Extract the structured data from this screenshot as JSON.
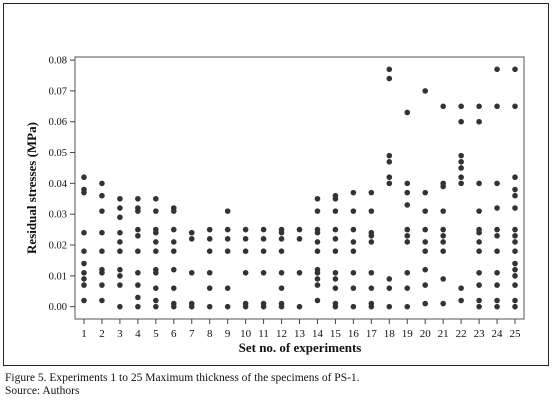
{
  "caption": "Figure 5. Experiments 1 to 25 Maximum thickness of the specimens of PS-1.",
  "source": "Source: Authors",
  "chart_data": {
    "type": "scatter",
    "xlabel": "Set no. of experiments",
    "ylabel": "Residual stresses (MPa)",
    "xlim": [
      0.5,
      25.5
    ],
    "ylim": [
      -0.004,
      0.081
    ],
    "x_ticks": [
      1,
      2,
      3,
      4,
      5,
      6,
      7,
      8,
      9,
      10,
      11,
      12,
      13,
      14,
      15,
      16,
      17,
      18,
      19,
      20,
      21,
      22,
      23,
      24,
      25
    ],
    "x_tick_labels": [
      "1",
      "2",
      "3",
      "4",
      "5",
      "6",
      "7",
      "8",
      "9",
      "10",
      "11",
      "12",
      "13",
      "14",
      "15",
      "16",
      "17",
      "18",
      "19",
      "20",
      "21",
      "22",
      "23",
      "24",
      "25"
    ],
    "y_ticks": [
      0,
      0.01,
      0.02,
      0.03,
      0.04,
      0.05,
      0.06,
      0.07,
      0.08
    ],
    "y_tick_labels": [
      "0.00",
      "0.01",
      "0.02",
      "0.03",
      "0.04",
      "0.05",
      "0.06",
      "0.07",
      "0.08"
    ],
    "grid": false,
    "marker_color": "#333333",
    "points": [
      [
        1,
        0.042
      ],
      [
        1,
        0.038
      ],
      [
        1,
        0.037
      ],
      [
        1,
        0.024
      ],
      [
        1,
        0.018
      ],
      [
        1,
        0.014
      ],
      [
        1,
        0.011
      ],
      [
        1,
        0.009
      ],
      [
        1,
        0.007
      ],
      [
        1,
        0.002
      ],
      [
        2,
        0.04
      ],
      [
        2,
        0.036
      ],
      [
        2,
        0.031
      ],
      [
        2,
        0.024
      ],
      [
        2,
        0.018
      ],
      [
        2,
        0.012
      ],
      [
        2,
        0.011
      ],
      [
        2,
        0.007
      ],
      [
        2,
        0.002
      ],
      [
        3,
        0.035
      ],
      [
        3,
        0.032
      ],
      [
        3,
        0.029
      ],
      [
        3,
        0.024
      ],
      [
        3,
        0.021
      ],
      [
        3,
        0.018
      ],
      [
        3,
        0.012
      ],
      [
        3,
        0.01
      ],
      [
        3,
        0.007
      ],
      [
        3,
        0.0
      ],
      [
        4,
        0.035
      ],
      [
        4,
        0.032
      ],
      [
        4,
        0.031
      ],
      [
        4,
        0.025
      ],
      [
        4,
        0.023
      ],
      [
        4,
        0.018
      ],
      [
        4,
        0.011
      ],
      [
        4,
        0.007
      ],
      [
        4,
        0.003
      ],
      [
        4,
        0.0
      ],
      [
        5,
        0.035
      ],
      [
        5,
        0.031
      ],
      [
        5,
        0.025
      ],
      [
        5,
        0.024
      ],
      [
        5,
        0.021
      ],
      [
        5,
        0.018
      ],
      [
        5,
        0.012
      ],
      [
        5,
        0.011
      ],
      [
        5,
        0.006
      ],
      [
        5,
        0.002
      ],
      [
        5,
        0.0
      ],
      [
        6,
        0.032
      ],
      [
        6,
        0.031
      ],
      [
        6,
        0.025
      ],
      [
        6,
        0.021
      ],
      [
        6,
        0.018
      ],
      [
        6,
        0.012
      ],
      [
        6,
        0.006
      ],
      [
        6,
        0.001
      ],
      [
        6,
        0.0
      ],
      [
        7,
        0.024
      ],
      [
        7,
        0.022
      ],
      [
        7,
        0.011
      ],
      [
        7,
        0.001
      ],
      [
        7,
        0.0
      ],
      [
        8,
        0.025
      ],
      [
        8,
        0.022
      ],
      [
        8,
        0.018
      ],
      [
        8,
        0.011
      ],
      [
        8,
        0.006
      ],
      [
        8,
        0.0
      ],
      [
        9,
        0.031
      ],
      [
        9,
        0.025
      ],
      [
        9,
        0.022
      ],
      [
        9,
        0.018
      ],
      [
        9,
        0.006
      ],
      [
        9,
        0.0
      ],
      [
        10,
        0.025
      ],
      [
        10,
        0.022
      ],
      [
        10,
        0.018
      ],
      [
        10,
        0.011
      ],
      [
        10,
        0.001
      ],
      [
        10,
        0.0
      ],
      [
        11,
        0.025
      ],
      [
        11,
        0.022
      ],
      [
        11,
        0.018
      ],
      [
        11,
        0.011
      ],
      [
        11,
        0.001
      ],
      [
        11,
        0.0
      ],
      [
        12,
        0.025
      ],
      [
        12,
        0.024
      ],
      [
        12,
        0.022
      ],
      [
        12,
        0.018
      ],
      [
        12,
        0.011
      ],
      [
        12,
        0.006
      ],
      [
        12,
        0.001
      ],
      [
        12,
        0.0
      ],
      [
        13,
        0.025
      ],
      [
        13,
        0.022
      ],
      [
        13,
        0.011
      ],
      [
        13,
        0.0
      ],
      [
        14,
        0.035
      ],
      [
        14,
        0.031
      ],
      [
        14,
        0.025
      ],
      [
        14,
        0.024
      ],
      [
        14,
        0.021
      ],
      [
        14,
        0.018
      ],
      [
        14,
        0.012
      ],
      [
        14,
        0.011
      ],
      [
        14,
        0.009
      ],
      [
        14,
        0.007
      ],
      [
        14,
        0.002
      ],
      [
        15,
        0.036
      ],
      [
        15,
        0.035
      ],
      [
        15,
        0.031
      ],
      [
        15,
        0.025
      ],
      [
        15,
        0.022
      ],
      [
        15,
        0.018
      ],
      [
        15,
        0.011
      ],
      [
        15,
        0.009
      ],
      [
        15,
        0.006
      ],
      [
        15,
        0.001
      ],
      [
        15,
        0.0
      ],
      [
        16,
        0.037
      ],
      [
        16,
        0.031
      ],
      [
        16,
        0.025
      ],
      [
        16,
        0.021
      ],
      [
        16,
        0.018
      ],
      [
        16,
        0.011
      ],
      [
        16,
        0.006
      ],
      [
        16,
        0.0
      ],
      [
        17,
        0.037
      ],
      [
        17,
        0.031
      ],
      [
        17,
        0.024
      ],
      [
        17,
        0.023
      ],
      [
        17,
        0.021
      ],
      [
        17,
        0.011
      ],
      [
        17,
        0.006
      ],
      [
        17,
        0.001
      ],
      [
        17,
        0.0
      ],
      [
        18,
        0.077
      ],
      [
        18,
        0.074
      ],
      [
        18,
        0.049
      ],
      [
        18,
        0.047
      ],
      [
        18,
        0.042
      ],
      [
        18,
        0.04
      ],
      [
        18,
        0.009
      ],
      [
        18,
        0.006
      ],
      [
        18,
        0.0
      ],
      [
        19,
        0.063
      ],
      [
        19,
        0.04
      ],
      [
        19,
        0.037
      ],
      [
        19,
        0.033
      ],
      [
        19,
        0.025
      ],
      [
        19,
        0.023
      ],
      [
        19,
        0.021
      ],
      [
        19,
        0.011
      ],
      [
        19,
        0.006
      ],
      [
        19,
        0.0
      ],
      [
        20,
        0.07
      ],
      [
        20,
        0.037
      ],
      [
        20,
        0.031
      ],
      [
        20,
        0.025
      ],
      [
        20,
        0.021
      ],
      [
        20,
        0.018
      ],
      [
        20,
        0.012
      ],
      [
        20,
        0.007
      ],
      [
        20,
        0.001
      ],
      [
        21,
        0.065
      ],
      [
        21,
        0.04
      ],
      [
        21,
        0.039
      ],
      [
        21,
        0.031
      ],
      [
        21,
        0.025
      ],
      [
        21,
        0.023
      ],
      [
        21,
        0.021
      ],
      [
        21,
        0.018
      ],
      [
        21,
        0.009
      ],
      [
        21,
        0.001
      ],
      [
        22,
        0.065
      ],
      [
        22,
        0.06
      ],
      [
        22,
        0.049
      ],
      [
        22,
        0.047
      ],
      [
        22,
        0.045
      ],
      [
        22,
        0.042
      ],
      [
        22,
        0.04
      ],
      [
        22,
        0.006
      ],
      [
        22,
        0.002
      ],
      [
        23,
        0.065
      ],
      [
        23,
        0.06
      ],
      [
        23,
        0.04
      ],
      [
        23,
        0.031
      ],
      [
        23,
        0.025
      ],
      [
        23,
        0.024
      ],
      [
        23,
        0.021
      ],
      [
        23,
        0.018
      ],
      [
        23,
        0.011
      ],
      [
        23,
        0.007
      ],
      [
        23,
        0.002
      ],
      [
        23,
        0.0
      ],
      [
        24,
        0.077
      ],
      [
        24,
        0.065
      ],
      [
        24,
        0.04
      ],
      [
        24,
        0.032
      ],
      [
        24,
        0.025
      ],
      [
        24,
        0.023
      ],
      [
        24,
        0.018
      ],
      [
        24,
        0.011
      ],
      [
        24,
        0.007
      ],
      [
        24,
        0.002
      ],
      [
        24,
        0.0
      ],
      [
        25,
        0.077
      ],
      [
        25,
        0.065
      ],
      [
        25,
        0.042
      ],
      [
        25,
        0.038
      ],
      [
        25,
        0.036
      ],
      [
        25,
        0.032
      ],
      [
        25,
        0.025
      ],
      [
        25,
        0.023
      ],
      [
        25,
        0.021
      ],
      [
        25,
        0.018
      ],
      [
        25,
        0.014
      ],
      [
        25,
        0.012
      ],
      [
        25,
        0.01
      ],
      [
        25,
        0.007
      ],
      [
        25,
        0.002
      ],
      [
        25,
        0.0
      ]
    ]
  }
}
